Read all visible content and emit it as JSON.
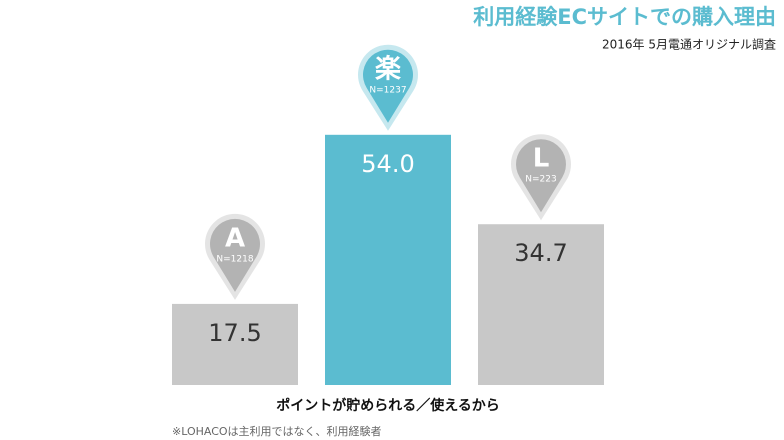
{
  "chart_data": {
    "type": "bar",
    "title": "利用経験ECサイトでの購入理由",
    "subtitle": "2016年 5月電通オリジナル調査",
    "categories": [
      "A",
      "楽",
      "L"
    ],
    "category_notes": [
      "N=1218",
      "N=1237",
      "N=223"
    ],
    "values": [
      17.5,
      54.0,
      34.7
    ],
    "value_labels": [
      "17.5",
      "54.0",
      "34.7"
    ],
    "colors": [
      "#c8c8c8",
      "#5bbcd0",
      "#c8c8c8"
    ],
    "pin_colors": [
      "#b3b3b3",
      "#5bbcd0",
      "#b3b3b3"
    ],
    "ylim": [
      0,
      60
    ],
    "x_label": "ポイントが貯められる／使えるから",
    "note": "※LOHACOは主利用ではなく、利用経験者"
  }
}
